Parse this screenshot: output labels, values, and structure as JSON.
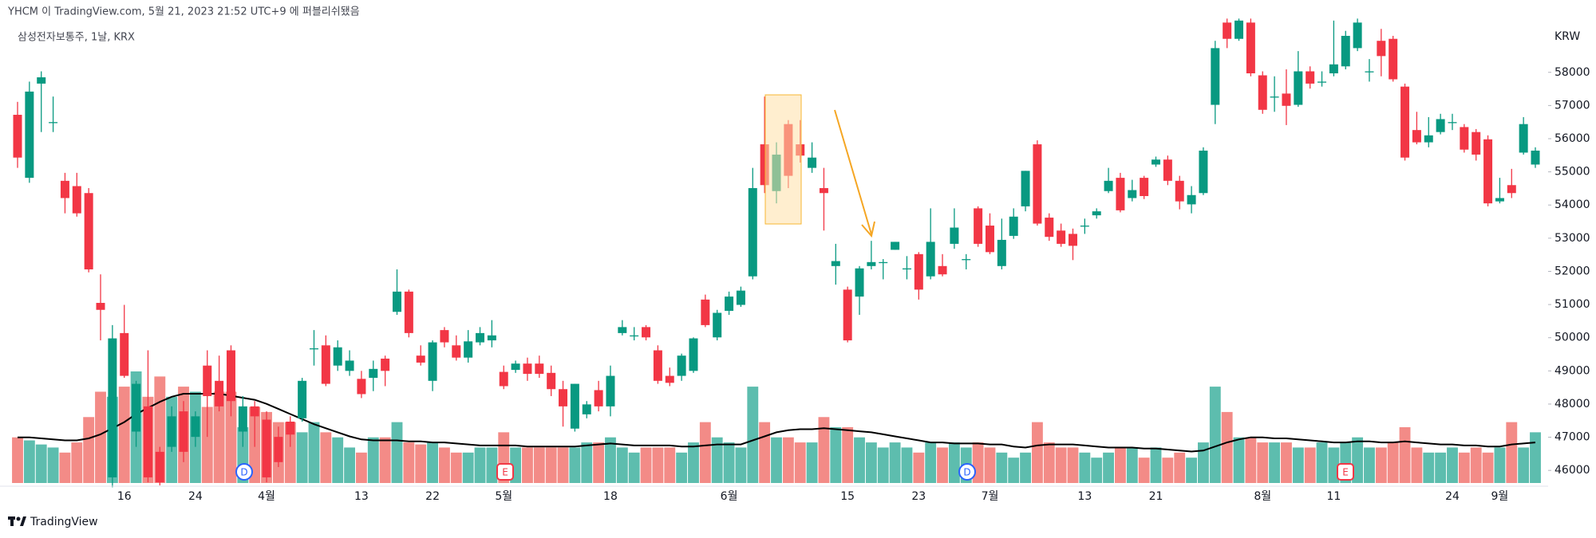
{
  "header": {
    "publisher": "YHCM 이 TradingView.com, 5월 21, 2023 21:52 UTC+9 에 퍼블리쉬됐음"
  },
  "footer": {
    "brand": "TradingView"
  },
  "chart_data": {
    "type": "candlestick",
    "title": "삼성전자보통주, 1날, KRX",
    "currency": "KRW",
    "events": [
      "D",
      "E",
      "D",
      "E"
    ],
    "up_color": "#089981",
    "down_color": "#f23645",
    "volume_up_color": "#5dbdae",
    "volume_down_color": "#f38b87",
    "volume_ma_color": "#000000",
    "grid": false,
    "ylim": [
      45500,
      59700
    ],
    "yticks": [
      46000,
      47000,
      48000,
      49000,
      50000,
      51000,
      52000,
      53000,
      54000,
      55000,
      56000,
      57000,
      58000
    ],
    "categories": [
      null,
      null,
      null,
      null,
      null,
      null,
      null,
      null,
      null,
      "16",
      null,
      null,
      null,
      null,
      null,
      "24",
      null,
      null,
      null,
      null,
      null,
      "4월",
      null,
      null,
      null,
      null,
      null,
      null,
      null,
      "13",
      null,
      null,
      null,
      null,
      null,
      "22",
      null,
      null,
      null,
      null,
      null,
      "5월",
      null,
      null,
      null,
      null,
      null,
      null,
      null,
      null,
      "18",
      null,
      null,
      null,
      null,
      null,
      null,
      null,
      null,
      null,
      "6월",
      null,
      null,
      null,
      null,
      null,
      null,
      null,
      null,
      null,
      "15",
      null,
      null,
      null,
      null,
      null,
      "23",
      null,
      null,
      null,
      null,
      null,
      "7월",
      null,
      null,
      null,
      null,
      null,
      null,
      null,
      "13",
      null,
      null,
      null,
      null,
      null,
      "21",
      null,
      null,
      null,
      null,
      null,
      null,
      null,
      null,
      "8월",
      null,
      null,
      null,
      null,
      null,
      "11",
      null,
      null,
      null,
      null,
      null,
      null,
      null,
      null,
      null,
      "24",
      null,
      null,
      null,
      "9월",
      null,
      null,
      null
    ],
    "open": [
      56720,
      54820,
      57660,
      56500,
      54730,
      54570,
      54360,
      51050,
      45790,
      50140,
      47170,
      47930,
      46560,
      46710,
      47780,
      47010,
      49160,
      48700,
      49620,
      47170,
      47930,
      47530,
      47010,
      47470,
      47570,
      49680,
      49770,
      49160,
      49000,
      48760,
      48790,
      49370,
      50780,
      51390,
      49460,
      48700,
      50230,
      49770,
      49400,
      49860,
      49920,
      48970,
      49030,
      49220,
      49220,
      48940,
      48450,
      47260,
      47690,
      48420,
      47930,
      50140,
      50070,
      50320,
      49620,
      48850,
      48850,
      49000,
      51150,
      50010,
      50810,
      50990,
      51850,
      55830,
      54420,
      56440,
      55830,
      55120,
      54510,
      52160,
      51450,
      51240,
      52160,
      52280,
      52650,
      52090,
      52520,
      51850,
      52160,
      52830,
      52370,
      53900,
      53380,
      52160,
      53070,
      53960,
      55830,
      53620,
      53230,
      53130,
      53380,
      53690,
      54420,
      54820,
      54210,
      54820,
      55220,
      55370,
      54730,
      54020,
      54360,
      57020,
      59500,
      59010,
      59500,
      57910,
      57270,
      57360,
      57020,
      58030,
      57720,
      57970,
      58180,
      58730,
      58030,
      58950,
      59010,
      57570,
      56260,
      55890,
      56200,
      56500,
      56350,
      56200,
      55980,
      54110,
      54600,
      55580,
      55220
    ],
    "high": [
      57110,
      57720,
      58030,
      57270,
      54970,
      54970,
      54510,
      51910,
      50380,
      50990,
      48700,
      49620,
      46710,
      47930,
      48090,
      47780,
      49620,
      49460,
      49770,
      48240,
      48090,
      47780,
      47320,
      47630,
      48790,
      50230,
      50070,
      49920,
      49620,
      49000,
      49310,
      49460,
      52060,
      51450,
      49770,
      49920,
      50320,
      50070,
      50230,
      50320,
      50530,
      49160,
      49310,
      49400,
      49460,
      49160,
      48700,
      48610,
      48090,
      48700,
      49160,
      50530,
      50320,
      50380,
      49770,
      49100,
      49520,
      50010,
      51300,
      50840,
      51390,
      51540,
      55120,
      57270,
      55890,
      56560,
      56560,
      55890,
      55120,
      52830,
      51540,
      52160,
      52920,
      52370,
      52890,
      52460,
      52580,
      53900,
      52520,
      53900,
      52520,
      53960,
      53750,
      53590,
      53900,
      55030,
      55950,
      53750,
      53440,
      53290,
      53590,
      53900,
      55120,
      54970,
      54760,
      54880,
      55460,
      55490,
      54880,
      54570,
      55740,
      58950,
      59620,
      59620,
      59620,
      58030,
      57880,
      58090,
      58640,
      58180,
      58030,
      59560,
      59250,
      59620,
      58400,
      59310,
      59100,
      57660,
      56810,
      56650,
      56750,
      56750,
      56440,
      56290,
      56100,
      54820,
      55090,
      56650,
      55740
    ],
    "low": [
      55120,
      54670,
      56200,
      56200,
      53750,
      53650,
      51970,
      49920,
      45490,
      48790,
      46710,
      45640,
      45550,
      46560,
      46250,
      46710,
      47010,
      47780,
      47630,
      46710,
      46710,
      45640,
      46100,
      46710,
      47470,
      49160,
      48540,
      49000,
      48850,
      48180,
      48390,
      48540,
      50690,
      50010,
      49160,
      48390,
      49710,
      49310,
      49250,
      49770,
      49710,
      48450,
      48940,
      48700,
      48790,
      48240,
      47320,
      47170,
      47570,
      47780,
      47630,
      50070,
      49920,
      49920,
      48610,
      48540,
      48700,
      48940,
      50320,
      49920,
      50690,
      50930,
      51760,
      54360,
      54050,
      54510,
      55280,
      54970,
      53230,
      51600,
      49860,
      50690,
      52060,
      51760,
      52650,
      51760,
      51150,
      51760,
      51850,
      52680,
      52060,
      52740,
      52520,
      52060,
      52980,
      53810,
      53380,
      52920,
      52740,
      52340,
      53130,
      53590,
      54360,
      53780,
      54110,
      54180,
      55150,
      54600,
      53870,
      53750,
      54300,
      56440,
      58730,
      58950,
      57880,
      56750,
      56810,
      56410,
      56960,
      57510,
      57570,
      57880,
      58090,
      58640,
      57720,
      57880,
      57720,
      55340,
      55830,
      55740,
      56130,
      56260,
      55580,
      55340,
      53960,
      54050,
      54210,
      55520,
      55120
    ],
    "close": [
      55430,
      57420,
      57850,
      56500,
      54210,
      53750,
      52060,
      50840,
      49980,
      48850,
      48610,
      45790,
      45640,
      47630,
      46560,
      47630,
      48240,
      47930,
      48090,
      47930,
      47630,
      45790,
      46250,
      47080,
      48700,
      49680,
      48610,
      49710,
      49310,
      48300,
      49060,
      49000,
      51390,
      50140,
      49250,
      49860,
      49860,
      49400,
      49890,
      50140,
      50070,
      48540,
      49220,
      48910,
      48910,
      48450,
      47930,
      48610,
      47990,
      47930,
      48850,
      50320,
      50070,
      50010,
      48700,
      48640,
      49460,
      49980,
      50380,
      50750,
      51240,
      51420,
      54510,
      54600,
      55520,
      54880,
      55490,
      55430,
      54360,
      52310,
      49920,
      52090,
      52280,
      52280,
      52890,
      52090,
      51450,
      52890,
      51910,
      53320,
      52370,
      52830,
      52580,
      52950,
      53650,
      55030,
      53440,
      53040,
      52830,
      52770,
      53380,
      53810,
      54730,
      53840,
      54450,
      54270,
      55370,
      54730,
      54110,
      54300,
      55640,
      58730,
      59010,
      59560,
      57970,
      56870,
      57270,
      56990,
      58030,
      57660,
      57720,
      58240,
      59100,
      59500,
      58030,
      58490,
      57790,
      55430,
      55890,
      56100,
      56590,
      56500,
      55670,
      55520,
      54050,
      54210,
      54360,
      56440,
      55640
    ],
    "volume": [
      45,
      42,
      38,
      35,
      30,
      40,
      65,
      90,
      85,
      95,
      110,
      85,
      105,
      85,
      95,
      90,
      75,
      90,
      90,
      55,
      75,
      70,
      60,
      60,
      50,
      60,
      50,
      45,
      35,
      30,
      45,
      45,
      60,
      40,
      38,
      40,
      35,
      30,
      30,
      35,
      35,
      50,
      35,
      35,
      35,
      35,
      35,
      35,
      40,
      40,
      45,
      35,
      30,
      35,
      35,
      35,
      30,
      40,
      60,
      45,
      40,
      35,
      95,
      60,
      45,
      45,
      40,
      40,
      65,
      55,
      55,
      45,
      40,
      35,
      40,
      35,
      30,
      40,
      35,
      40,
      35,
      40,
      35,
      30,
      25,
      30,
      60,
      40,
      35,
      35,
      30,
      25,
      30,
      35,
      35,
      25,
      35,
      25,
      30,
      25,
      40,
      95,
      70,
      45,
      45,
      40,
      40,
      40,
      35,
      35,
      40,
      35,
      40,
      45,
      35,
      35,
      40,
      55,
      35,
      30,
      30,
      35,
      30,
      35,
      30,
      35,
      60,
      35,
      50
    ],
    "volume_ma": [
      45,
      45,
      44,
      43,
      42,
      42,
      44,
      48,
      54,
      60,
      68,
      74,
      80,
      85,
      88,
      88,
      88,
      88,
      86,
      84,
      82,
      78,
      73,
      68,
      63,
      58,
      54,
      50,
      46,
      43,
      42,
      42,
      42,
      41,
      41,
      40,
      40,
      39,
      38,
      37,
      37,
      37,
      37,
      36,
      36,
      36,
      36,
      36,
      37,
      38,
      39,
      38,
      37,
      37,
      37,
      37,
      36,
      36,
      37,
      38,
      38,
      38,
      42,
      46,
      50,
      52,
      53,
      53,
      54,
      53,
      52,
      51,
      50,
      48,
      46,
      44,
      42,
      40,
      40,
      39,
      39,
      39,
      38,
      38,
      36,
      35,
      37,
      38,
      38,
      38,
      37,
      36,
      35,
      35,
      35,
      34,
      34,
      33,
      32,
      31,
      32,
      36,
      40,
      43,
      45,
      45,
      44,
      44,
      43,
      42,
      41,
      40,
      40,
      41,
      41,
      40,
      40,
      41,
      40,
      39,
      38,
      38,
      37,
      37,
      36,
      36,
      38,
      39,
      40
    ]
  }
}
